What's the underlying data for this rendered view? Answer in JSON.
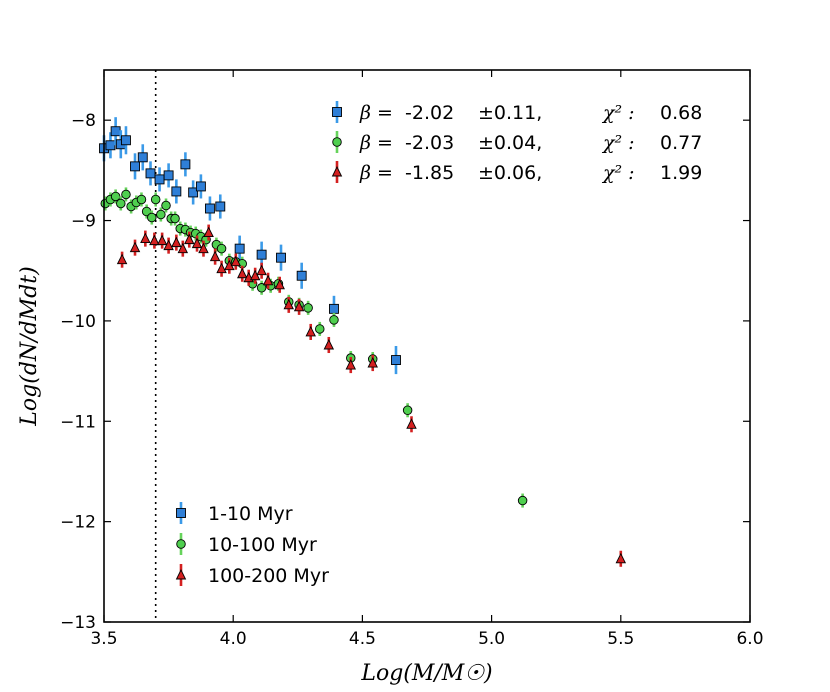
{
  "chart_data": {
    "type": "scatter",
    "title": "",
    "xlabel": "Log(M/M☉)",
    "ylabel": "Log(dN/dMdt)",
    "xlim": [
      3.5,
      6.0
    ],
    "ylim": [
      -13,
      -7.5
    ],
    "xticks": [
      "3.5",
      "4.0",
      "4.5",
      "5.0",
      "5.5",
      "6.0"
    ],
    "yticks": [
      "−8",
      "−9",
      "−10",
      "−11",
      "−12",
      "−13"
    ],
    "ytick_values": [
      -8,
      -9,
      -10,
      -11,
      -12,
      -13
    ],
    "xtick_values": [
      3.5,
      4.0,
      4.5,
      5.0,
      5.5,
      6.0
    ],
    "vline_x": 3.7,
    "legend_position": "lower-left",
    "series": [
      {
        "name": "1-10 Myr",
        "marker": "square",
        "color": "#2f7fd7",
        "bar_color": "#3b9ae8",
        "points": [
          {
            "x": 3.5,
            "y": -8.28,
            "err": 0.13
          },
          {
            "x": 3.525,
            "y": -8.25,
            "err": 0.13
          },
          {
            "x": 3.545,
            "y": -8.11,
            "err": 0.14
          },
          {
            "x": 3.565,
            "y": -8.24,
            "err": 0.14
          },
          {
            "x": 3.585,
            "y": -8.2,
            "err": 0.14
          },
          {
            "x": 3.62,
            "y": -8.46,
            "err": 0.13
          },
          {
            "x": 3.65,
            "y": -8.37,
            "err": 0.13
          },
          {
            "x": 3.68,
            "y": -8.53,
            "err": 0.12
          },
          {
            "x": 3.715,
            "y": -8.59,
            "err": 0.12
          },
          {
            "x": 3.75,
            "y": -8.55,
            "err": 0.12
          },
          {
            "x": 3.78,
            "y": -8.71,
            "err": 0.12
          },
          {
            "x": 3.815,
            "y": -8.44,
            "err": 0.12
          },
          {
            "x": 3.845,
            "y": -8.72,
            "err": 0.12
          },
          {
            "x": 3.875,
            "y": -8.66,
            "err": 0.12
          },
          {
            "x": 3.91,
            "y": -8.88,
            "err": 0.12
          },
          {
            "x": 3.95,
            "y": -8.86,
            "err": 0.12
          },
          {
            "x": 4.025,
            "y": -9.28,
            "err": 0.13
          },
          {
            "x": 4.11,
            "y": -9.34,
            "err": 0.13
          },
          {
            "x": 4.185,
            "y": -9.37,
            "err": 0.13
          },
          {
            "x": 4.265,
            "y": -9.55,
            "err": 0.13
          },
          {
            "x": 4.39,
            "y": -9.88,
            "err": 0.13
          },
          {
            "x": 4.63,
            "y": -10.39,
            "err": 0.14
          }
        ]
      },
      {
        "name": "10-100 Myr",
        "marker": "circle",
        "color": "#4fcf4f",
        "bar_color": "#66d35b",
        "points": [
          {
            "x": 3.505,
            "y": -8.83,
            "err": 0.07
          },
          {
            "x": 3.525,
            "y": -8.79,
            "err": 0.07
          },
          {
            "x": 3.545,
            "y": -8.76,
            "err": 0.07
          },
          {
            "x": 3.565,
            "y": -8.83,
            "err": 0.07
          },
          {
            "x": 3.585,
            "y": -8.74,
            "err": 0.07
          },
          {
            "x": 3.605,
            "y": -8.86,
            "err": 0.07
          },
          {
            "x": 3.625,
            "y": -8.82,
            "err": 0.07
          },
          {
            "x": 3.645,
            "y": -8.79,
            "err": 0.07
          },
          {
            "x": 3.665,
            "y": -8.91,
            "err": 0.07
          },
          {
            "x": 3.685,
            "y": -8.97,
            "err": 0.07
          },
          {
            "x": 3.7,
            "y": -8.79,
            "err": 0.07
          },
          {
            "x": 3.72,
            "y": -8.94,
            "err": 0.07
          },
          {
            "x": 3.74,
            "y": -8.85,
            "err": 0.07
          },
          {
            "x": 3.76,
            "y": -8.98,
            "err": 0.07
          },
          {
            "x": 3.775,
            "y": -8.98,
            "err": 0.07
          },
          {
            "x": 3.795,
            "y": -9.08,
            "err": 0.07
          },
          {
            "x": 3.815,
            "y": -9.09,
            "err": 0.07
          },
          {
            "x": 3.835,
            "y": -9.12,
            "err": 0.07
          },
          {
            "x": 3.855,
            "y": -9.13,
            "err": 0.07
          },
          {
            "x": 3.875,
            "y": -9.16,
            "err": 0.07
          },
          {
            "x": 3.895,
            "y": -9.19,
            "err": 0.07
          },
          {
            "x": 3.935,
            "y": -9.24,
            "err": 0.07
          },
          {
            "x": 3.955,
            "y": -9.28,
            "err": 0.07
          },
          {
            "x": 3.985,
            "y": -9.4,
            "err": 0.07
          },
          {
            "x": 4.01,
            "y": -9.41,
            "err": 0.07
          },
          {
            "x": 4.035,
            "y": -9.43,
            "err": 0.07
          },
          {
            "x": 4.075,
            "y": -9.63,
            "err": 0.07
          },
          {
            "x": 4.11,
            "y": -9.67,
            "err": 0.07
          },
          {
            "x": 4.145,
            "y": -9.65,
            "err": 0.07
          },
          {
            "x": 4.175,
            "y": -9.63,
            "err": 0.07
          },
          {
            "x": 4.215,
            "y": -9.81,
            "err": 0.07
          },
          {
            "x": 4.255,
            "y": -9.84,
            "err": 0.07
          },
          {
            "x": 4.29,
            "y": -9.87,
            "err": 0.07
          },
          {
            "x": 4.335,
            "y": -10.08,
            "err": 0.07
          },
          {
            "x": 4.39,
            "y": -9.99,
            "err": 0.07
          },
          {
            "x": 4.455,
            "y": -10.37,
            "err": 0.07
          },
          {
            "x": 4.54,
            "y": -10.38,
            "err": 0.07
          },
          {
            "x": 4.675,
            "y": -10.89,
            "err": 0.07
          },
          {
            "x": 5.12,
            "y": -11.79,
            "err": 0.07
          }
        ]
      },
      {
        "name": "100-200 Myr",
        "marker": "triangle",
        "color": "#d42020",
        "bar_color": "#d42020",
        "points": [
          {
            "x": 3.57,
            "y": -9.39,
            "err": 0.08
          },
          {
            "x": 3.62,
            "y": -9.27,
            "err": 0.08
          },
          {
            "x": 3.66,
            "y": -9.18,
            "err": 0.08
          },
          {
            "x": 3.695,
            "y": -9.2,
            "err": 0.08
          },
          {
            "x": 3.725,
            "y": -9.2,
            "err": 0.08
          },
          {
            "x": 3.75,
            "y": -9.25,
            "err": 0.08
          },
          {
            "x": 3.78,
            "y": -9.22,
            "err": 0.08
          },
          {
            "x": 3.805,
            "y": -9.28,
            "err": 0.08
          },
          {
            "x": 3.83,
            "y": -9.19,
            "err": 0.08
          },
          {
            "x": 3.86,
            "y": -9.23,
            "err": 0.08
          },
          {
            "x": 3.885,
            "y": -9.28,
            "err": 0.08
          },
          {
            "x": 3.905,
            "y": -9.12,
            "err": 0.08
          },
          {
            "x": 3.93,
            "y": -9.36,
            "err": 0.08
          },
          {
            "x": 3.955,
            "y": -9.48,
            "err": 0.08
          },
          {
            "x": 3.985,
            "y": -9.45,
            "err": 0.08
          },
          {
            "x": 4.01,
            "y": -9.41,
            "err": 0.08
          },
          {
            "x": 4.035,
            "y": -9.53,
            "err": 0.08
          },
          {
            "x": 4.06,
            "y": -9.57,
            "err": 0.08
          },
          {
            "x": 4.085,
            "y": -9.55,
            "err": 0.08
          },
          {
            "x": 4.11,
            "y": -9.5,
            "err": 0.08
          },
          {
            "x": 4.135,
            "y": -9.6,
            "err": 0.08
          },
          {
            "x": 4.18,
            "y": -9.64,
            "err": 0.08
          },
          {
            "x": 4.215,
            "y": -9.84,
            "err": 0.08
          },
          {
            "x": 4.255,
            "y": -9.86,
            "err": 0.08
          },
          {
            "x": 4.3,
            "y": -10.11,
            "err": 0.08
          },
          {
            "x": 4.37,
            "y": -10.24,
            "err": 0.08
          },
          {
            "x": 4.455,
            "y": -10.44,
            "err": 0.08
          },
          {
            "x": 4.54,
            "y": -10.42,
            "err": 0.08
          },
          {
            "x": 4.69,
            "y": -11.03,
            "err": 0.08
          },
          {
            "x": 5.5,
            "y": -12.37,
            "err": 0.08
          }
        ]
      }
    ],
    "fits": [
      {
        "series": "1-10 Myr",
        "beta_label": "β =",
        "beta": "-2.02",
        "error": "±0.11,",
        "chi_label": "χ² :",
        "chi2": "0.68"
      },
      {
        "series": "10-100 Myr",
        "beta_label": "β =",
        "beta": "-2.03",
        "error": "±0.04,",
        "chi_label": "χ² :",
        "chi2": "0.77"
      },
      {
        "series": "100-200 Myr",
        "beta_label": "β =",
        "beta": "-1.85",
        "error": "±0.06,",
        "chi_label": "χ² :",
        "chi2": "1.99"
      }
    ]
  }
}
